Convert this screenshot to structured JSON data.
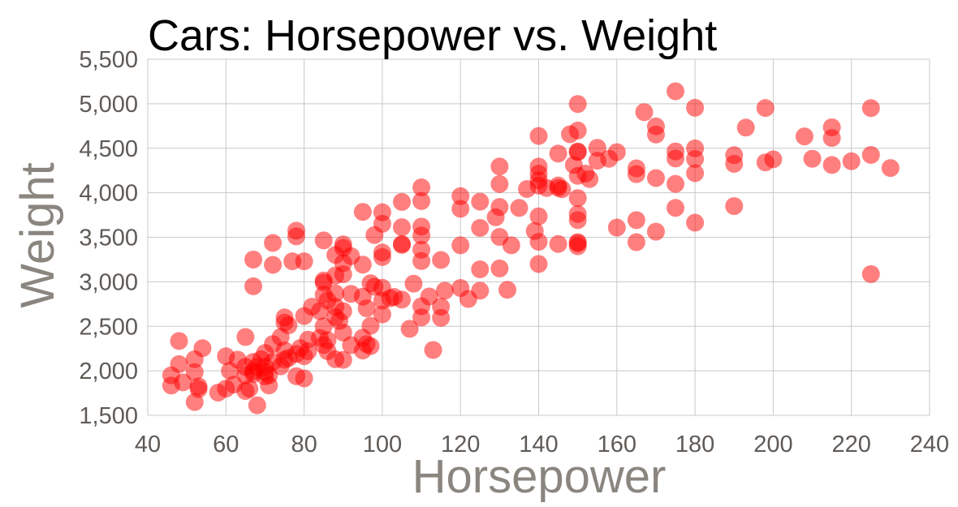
{
  "chart_data": {
    "type": "scatter",
    "title": "Cars: Horsepower vs. Weight",
    "xlabel": "Horsepower",
    "ylabel": "Weight",
    "xlim": [
      40,
      240
    ],
    "ylim": [
      1500,
      5500
    ],
    "x_ticks": [
      "40",
      "60",
      "80",
      "100",
      "120",
      "140",
      "160",
      "180",
      "200",
      "220",
      "240"
    ],
    "y_ticks": [
      "1,500",
      "2,000",
      "2,500",
      "3,000",
      "3,500",
      "4,000",
      "4,500",
      "5,000",
      "5,500"
    ],
    "grid": true,
    "marker_color": "#ff0000",
    "points": [
      [
        46,
        1835
      ],
      [
        46,
        1950
      ],
      [
        48,
        2075
      ],
      [
        48,
        2335
      ],
      [
        49,
        1870
      ],
      [
        52,
        1649
      ],
      [
        52,
        2130
      ],
      [
        52,
        1985
      ],
      [
        53,
        1795
      ],
      [
        53,
        1825
      ],
      [
        54,
        2254
      ],
      [
        58,
        1755
      ],
      [
        60,
        1800
      ],
      [
        60,
        2164
      ],
      [
        61,
        2000
      ],
      [
        62,
        1845
      ],
      [
        63,
        2125
      ],
      [
        65,
        1773
      ],
      [
        65,
        1950
      ],
      [
        65,
        2045
      ],
      [
        65,
        2380
      ],
      [
        66,
        1800
      ],
      [
        67,
        1965
      ],
      [
        67,
        1995
      ],
      [
        67,
        2100
      ],
      [
        67,
        3250
      ],
      [
        67,
        2950
      ],
      [
        68,
        1613
      ],
      [
        68,
        2045
      ],
      [
        69,
        2130
      ],
      [
        70,
        1990
      ],
      [
        70,
        1937
      ],
      [
        70,
        2045
      ],
      [
        70,
        2200
      ],
      [
        71,
        1836
      ],
      [
        71,
        1950
      ],
      [
        72,
        2100
      ],
      [
        72,
        2300
      ],
      [
        72,
        3436
      ],
      [
        72,
        3190
      ],
      [
        74,
        2050
      ],
      [
        74,
        2380
      ],
      [
        75,
        2125
      ],
      [
        75,
        2230
      ],
      [
        75,
        2542
      ],
      [
        75,
        2600
      ],
      [
        76,
        2144
      ],
      [
        76,
        2511
      ],
      [
        77,
        3230
      ],
      [
        78,
        1940
      ],
      [
        78,
        2190
      ],
      [
        78,
        3574
      ],
      [
        78,
        3510
      ],
      [
        79,
        2255
      ],
      [
        80,
        1915
      ],
      [
        80,
        2164
      ],
      [
        80,
        2615
      ],
      [
        80,
        3230
      ],
      [
        81,
        2220
      ],
      [
        81,
        2350
      ],
      [
        82,
        2720
      ],
      [
        84,
        2370
      ],
      [
        84,
        2670
      ],
      [
        85,
        2290
      ],
      [
        85,
        2500
      ],
      [
        85,
        2855
      ],
      [
        85,
        2990
      ],
      [
        85,
        3015
      ],
      [
        85,
        3465
      ],
      [
        86,
        2220
      ],
      [
        86,
        2790
      ],
      [
        86,
        2345
      ],
      [
        88,
        2130
      ],
      [
        88,
        2605
      ],
      [
        88,
        2720
      ],
      [
        88,
        3070
      ],
      [
        88,
        2870
      ],
      [
        88,
        3302
      ],
      [
        89,
        2560
      ],
      [
        90,
        2123
      ],
      [
        90,
        2430
      ],
      [
        90,
        2670
      ],
      [
        90,
        3085
      ],
      [
        90,
        3210
      ],
      [
        90,
        3381
      ],
      [
        90,
        3420
      ],
      [
        92,
        2288
      ],
      [
        92,
        2865
      ],
      [
        92,
        3288
      ],
      [
        95,
        2228
      ],
      [
        95,
        2372
      ],
      [
        95,
        2833
      ],
      [
        95,
        3193
      ],
      [
        95,
        3785
      ],
      [
        96,
        2300
      ],
      [
        96,
        2702
      ],
      [
        97,
        2278
      ],
      [
        97,
        2506
      ],
      [
        97,
        2984
      ],
      [
        98,
        2945
      ],
      [
        98,
        3525
      ],
      [
        100,
        2634
      ],
      [
        100,
        2789
      ],
      [
        100,
        2933
      ],
      [
        100,
        3278
      ],
      [
        100,
        3329
      ],
      [
        100,
        3651
      ],
      [
        100,
        3781
      ],
      [
        102,
        2815
      ],
      [
        103,
        2830
      ],
      [
        105,
        2800
      ],
      [
        105,
        3415
      ],
      [
        105,
        3425
      ],
      [
        105,
        3613
      ],
      [
        105,
        3897
      ],
      [
        107,
        2472
      ],
      [
        108,
        2979
      ],
      [
        110,
        2600
      ],
      [
        110,
        2725
      ],
      [
        110,
        3233
      ],
      [
        110,
        3360
      ],
      [
        110,
        3520
      ],
      [
        110,
        3620
      ],
      [
        110,
        3907
      ],
      [
        110,
        4060
      ],
      [
        112,
        2835
      ],
      [
        113,
        2234
      ],
      [
        115,
        2595
      ],
      [
        115,
        2720
      ],
      [
        115,
        3245
      ],
      [
        116,
        2900
      ],
      [
        120,
        2930
      ],
      [
        120,
        3410
      ],
      [
        120,
        3820
      ],
      [
        120,
        3962
      ],
      [
        122,
        2807
      ],
      [
        125,
        2900
      ],
      [
        125,
        3140
      ],
      [
        125,
        3605
      ],
      [
        125,
        3900
      ],
      [
        129,
        3725
      ],
      [
        130,
        3150
      ],
      [
        130,
        3504
      ],
      [
        130,
        3840
      ],
      [
        130,
        4098
      ],
      [
        130,
        4295
      ],
      [
        132,
        2910
      ],
      [
        133,
        3410
      ],
      [
        135,
        3830
      ],
      [
        137,
        4042
      ],
      [
        139,
        3570
      ],
      [
        140,
        3200
      ],
      [
        140,
        3449
      ],
      [
        140,
        3735
      ],
      [
        140,
        4080
      ],
      [
        140,
        4141
      ],
      [
        140,
        4215
      ],
      [
        140,
        4294
      ],
      [
        140,
        4638
      ],
      [
        142,
        4054
      ],
      [
        145,
        3425
      ],
      [
        145,
        4055
      ],
      [
        145,
        4082
      ],
      [
        145,
        4440
      ],
      [
        146,
        4040
      ],
      [
        148,
        4657
      ],
      [
        149,
        4312
      ],
      [
        150,
        3399
      ],
      [
        150,
        3433
      ],
      [
        150,
        3445
      ],
      [
        150,
        3693
      ],
      [
        150,
        3761
      ],
      [
        150,
        3940
      ],
      [
        150,
        4190
      ],
      [
        150,
        4457
      ],
      [
        150,
        4464
      ],
      [
        150,
        4699
      ],
      [
        150,
        4997
      ],
      [
        152,
        4215
      ],
      [
        153,
        4154
      ],
      [
        155,
        4360
      ],
      [
        155,
        4505
      ],
      [
        158,
        4382
      ],
      [
        160,
        3609
      ],
      [
        160,
        4456
      ],
      [
        165,
        3445
      ],
      [
        165,
        3693
      ],
      [
        165,
        4209
      ],
      [
        165,
        4274
      ],
      [
        167,
        4906
      ],
      [
        170,
        3563
      ],
      [
        170,
        4165
      ],
      [
        170,
        4654
      ],
      [
        170,
        4746
      ],
      [
        175,
        3830
      ],
      [
        175,
        4100
      ],
      [
        175,
        4385
      ],
      [
        175,
        4464
      ],
      [
        175,
        5140
      ],
      [
        180,
        3664
      ],
      [
        180,
        4220
      ],
      [
        180,
        4380
      ],
      [
        180,
        4499
      ],
      [
        180,
        4955
      ],
      [
        190,
        3850
      ],
      [
        190,
        4325
      ],
      [
        190,
        4422
      ],
      [
        193,
        4732
      ],
      [
        198,
        4341
      ],
      [
        198,
        4952
      ],
      [
        200,
        4376
      ],
      [
        208,
        4633
      ],
      [
        210,
        4382
      ],
      [
        215,
        4312
      ],
      [
        215,
        4615
      ],
      [
        215,
        4735
      ],
      [
        220,
        4354
      ],
      [
        225,
        3086
      ],
      [
        225,
        4425
      ],
      [
        225,
        4951
      ],
      [
        230,
        4278
      ]
    ]
  }
}
